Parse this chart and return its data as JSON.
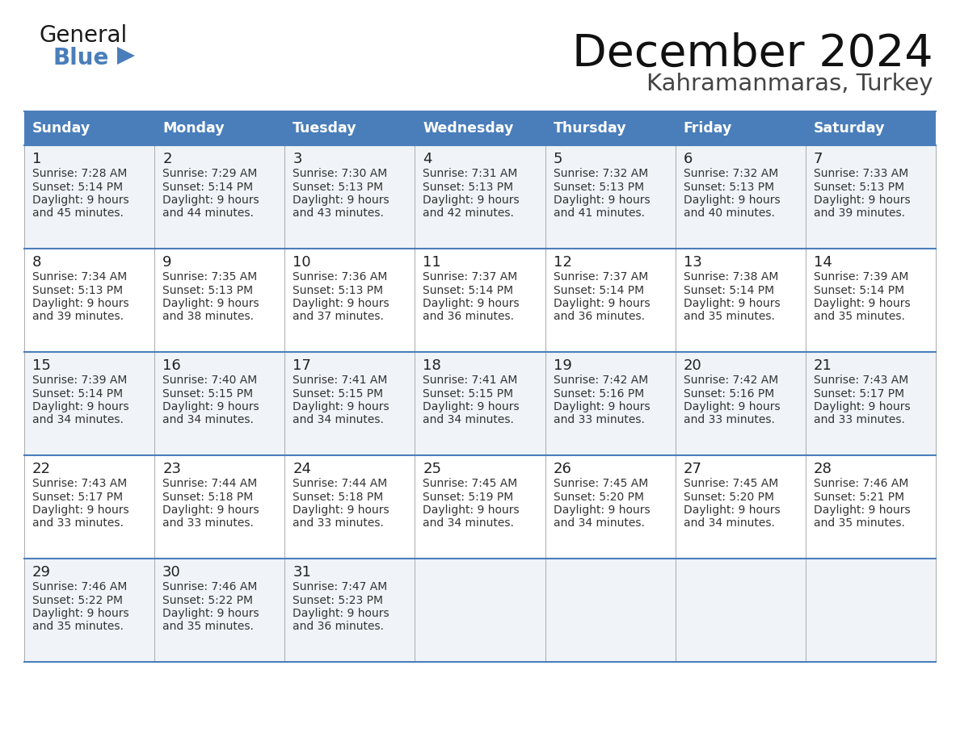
{
  "title": "December 2024",
  "subtitle": "Kahramanmaras, Turkey",
  "days_of_week": [
    "Sunday",
    "Monday",
    "Tuesday",
    "Wednesday",
    "Thursday",
    "Friday",
    "Saturday"
  ],
  "header_bg": "#4A7EBB",
  "header_text": "#FFFFFF",
  "row_bg": "#F0F4F8",
  "cell_text_color": "#333333",
  "day_number_color": "#222222",
  "border_color": "#4A7EBB",
  "grid_color": "#AAAAAA",
  "calendar_data": [
    [
      {
        "day": "1",
        "sunrise": "7:28 AM",
        "sunset": "5:14 PM",
        "daylight_h": "9 hours",
        "daylight_m": "and 45 minutes."
      },
      {
        "day": "2",
        "sunrise": "7:29 AM",
        "sunset": "5:14 PM",
        "daylight_h": "9 hours",
        "daylight_m": "and 44 minutes."
      },
      {
        "day": "3",
        "sunrise": "7:30 AM",
        "sunset": "5:13 PM",
        "daylight_h": "9 hours",
        "daylight_m": "and 43 minutes."
      },
      {
        "day": "4",
        "sunrise": "7:31 AM",
        "sunset": "5:13 PM",
        "daylight_h": "9 hours",
        "daylight_m": "and 42 minutes."
      },
      {
        "day": "5",
        "sunrise": "7:32 AM",
        "sunset": "5:13 PM",
        "daylight_h": "9 hours",
        "daylight_m": "and 41 minutes."
      },
      {
        "day": "6",
        "sunrise": "7:32 AM",
        "sunset": "5:13 PM",
        "daylight_h": "9 hours",
        "daylight_m": "and 40 minutes."
      },
      {
        "day": "7",
        "sunrise": "7:33 AM",
        "sunset": "5:13 PM",
        "daylight_h": "9 hours",
        "daylight_m": "and 39 minutes."
      }
    ],
    [
      {
        "day": "8",
        "sunrise": "7:34 AM",
        "sunset": "5:13 PM",
        "daylight_h": "9 hours",
        "daylight_m": "and 39 minutes."
      },
      {
        "day": "9",
        "sunrise": "7:35 AM",
        "sunset": "5:13 PM",
        "daylight_h": "9 hours",
        "daylight_m": "and 38 minutes."
      },
      {
        "day": "10",
        "sunrise": "7:36 AM",
        "sunset": "5:13 PM",
        "daylight_h": "9 hours",
        "daylight_m": "and 37 minutes."
      },
      {
        "day": "11",
        "sunrise": "7:37 AM",
        "sunset": "5:14 PM",
        "daylight_h": "9 hours",
        "daylight_m": "and 36 minutes."
      },
      {
        "day": "12",
        "sunrise": "7:37 AM",
        "sunset": "5:14 PM",
        "daylight_h": "9 hours",
        "daylight_m": "and 36 minutes."
      },
      {
        "day": "13",
        "sunrise": "7:38 AM",
        "sunset": "5:14 PM",
        "daylight_h": "9 hours",
        "daylight_m": "and 35 minutes."
      },
      {
        "day": "14",
        "sunrise": "7:39 AM",
        "sunset": "5:14 PM",
        "daylight_h": "9 hours",
        "daylight_m": "and 35 minutes."
      }
    ],
    [
      {
        "day": "15",
        "sunrise": "7:39 AM",
        "sunset": "5:14 PM",
        "daylight_h": "9 hours",
        "daylight_m": "and 34 minutes."
      },
      {
        "day": "16",
        "sunrise": "7:40 AM",
        "sunset": "5:15 PM",
        "daylight_h": "9 hours",
        "daylight_m": "and 34 minutes."
      },
      {
        "day": "17",
        "sunrise": "7:41 AM",
        "sunset": "5:15 PM",
        "daylight_h": "9 hours",
        "daylight_m": "and 34 minutes."
      },
      {
        "day": "18",
        "sunrise": "7:41 AM",
        "sunset": "5:15 PM",
        "daylight_h": "9 hours",
        "daylight_m": "and 34 minutes."
      },
      {
        "day": "19",
        "sunrise": "7:42 AM",
        "sunset": "5:16 PM",
        "daylight_h": "9 hours",
        "daylight_m": "and 33 minutes."
      },
      {
        "day": "20",
        "sunrise": "7:42 AM",
        "sunset": "5:16 PM",
        "daylight_h": "9 hours",
        "daylight_m": "and 33 minutes."
      },
      {
        "day": "21",
        "sunrise": "7:43 AM",
        "sunset": "5:17 PM",
        "daylight_h": "9 hours",
        "daylight_m": "and 33 minutes."
      }
    ],
    [
      {
        "day": "22",
        "sunrise": "7:43 AM",
        "sunset": "5:17 PM",
        "daylight_h": "9 hours",
        "daylight_m": "and 33 minutes."
      },
      {
        "day": "23",
        "sunrise": "7:44 AM",
        "sunset": "5:18 PM",
        "daylight_h": "9 hours",
        "daylight_m": "and 33 minutes."
      },
      {
        "day": "24",
        "sunrise": "7:44 AM",
        "sunset": "5:18 PM",
        "daylight_h": "9 hours",
        "daylight_m": "and 33 minutes."
      },
      {
        "day": "25",
        "sunrise": "7:45 AM",
        "sunset": "5:19 PM",
        "daylight_h": "9 hours",
        "daylight_m": "and 34 minutes."
      },
      {
        "day": "26",
        "sunrise": "7:45 AM",
        "sunset": "5:20 PM",
        "daylight_h": "9 hours",
        "daylight_m": "and 34 minutes."
      },
      {
        "day": "27",
        "sunrise": "7:45 AM",
        "sunset": "5:20 PM",
        "daylight_h": "9 hours",
        "daylight_m": "and 34 minutes."
      },
      {
        "day": "28",
        "sunrise": "7:46 AM",
        "sunset": "5:21 PM",
        "daylight_h": "9 hours",
        "daylight_m": "and 35 minutes."
      }
    ],
    [
      {
        "day": "29",
        "sunrise": "7:46 AM",
        "sunset": "5:22 PM",
        "daylight_h": "9 hours",
        "daylight_m": "and 35 minutes."
      },
      {
        "day": "30",
        "sunrise": "7:46 AM",
        "sunset": "5:22 PM",
        "daylight_h": "9 hours",
        "daylight_m": "and 35 minutes."
      },
      {
        "day": "31",
        "sunrise": "7:47 AM",
        "sunset": "5:23 PM",
        "daylight_h": "9 hours",
        "daylight_m": "and 36 minutes."
      },
      null,
      null,
      null,
      null
    ]
  ]
}
